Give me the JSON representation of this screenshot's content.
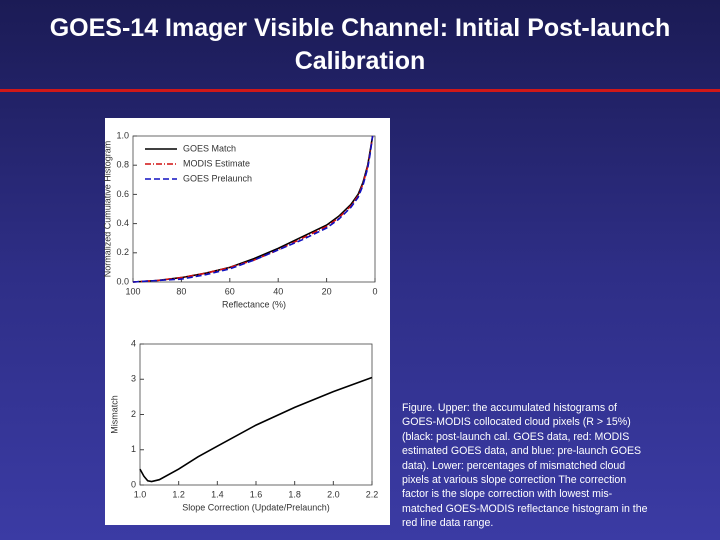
{
  "title": "GOES-14 Imager Visible Channel: Initial Post-launch Calibration",
  "caption": [
    "Figure.  Upper: the accumulated histograms of",
    "GOES-MODIS  collocated cloud pixels (R > 15%)",
    "(black:  post-launch cal. GOES data, red: MODIS",
    "estimated  GOES data, and blue: pre-launch GOES",
    "data).  Lower: percentages of mismatched  cloud",
    "pixels at various slope correction   The  correction",
    "factor is the slope correction  with lowest mis-",
    "matched GOES-MODIS reflectance histogram in the",
    "red line data range."
  ],
  "chart_data": [
    {
      "type": "line",
      "x_label": "Reflectance (%)",
      "y_label": "Normalized Cumulative Histogram",
      "x": [
        100,
        90,
        80,
        70,
        60,
        50,
        40,
        30,
        20,
        15,
        10,
        7,
        5,
        3,
        2,
        1
      ],
      "series": [
        {
          "name": "GOES Match",
          "color": "#000000",
          "dash": "solid",
          "values": [
            0,
            0.01,
            0.03,
            0.06,
            0.1,
            0.16,
            0.23,
            0.31,
            0.39,
            0.45,
            0.53,
            0.6,
            0.68,
            0.8,
            0.9,
            1.0
          ]
        },
        {
          "name": "MODIS Estimate",
          "color": "#d01010",
          "dash": "dashdot",
          "values": [
            0,
            0.01,
            0.03,
            0.06,
            0.1,
            0.15,
            0.22,
            0.3,
            0.38,
            0.44,
            0.52,
            0.59,
            0.67,
            0.79,
            0.89,
            1.0
          ]
        },
        {
          "name": "GOES Prelaunch",
          "color": "#1010c0",
          "dash": "dashed",
          "values": [
            0,
            0.01,
            0.02,
            0.05,
            0.09,
            0.15,
            0.22,
            0.29,
            0.37,
            0.43,
            0.51,
            0.58,
            0.66,
            0.78,
            0.88,
            1.0
          ]
        }
      ],
      "xlim": [
        100,
        0
      ],
      "xticks": [
        100,
        80,
        60,
        40,
        20,
        0
      ],
      "ylim": [
        0,
        1.0
      ],
      "yticks": [
        {
          "value": 0,
          "label": "0.0"
        },
        {
          "value": 0.2,
          "label": "0.2"
        },
        {
          "value": 0.4,
          "label": "0.4"
        },
        {
          "value": 0.6,
          "label": "0.6"
        },
        {
          "value": 0.8,
          "label": "0.8"
        },
        {
          "value": 1.0,
          "label": "1.0"
        }
      ],
      "legend": "top-left"
    },
    {
      "type": "line",
      "x_label": "Slope Correction (Update/Prelaunch)",
      "y_label": "Mismatch",
      "x": [
        1.0,
        1.02,
        1.04,
        1.06,
        1.1,
        1.2,
        1.3,
        1.4,
        1.6,
        1.8,
        2.0,
        2.2
      ],
      "series": [
        {
          "color": "#000000",
          "dash": "solid",
          "values": [
            0.45,
            0.25,
            0.12,
            0.1,
            0.15,
            0.45,
            0.8,
            1.1,
            1.7,
            2.2,
            2.65,
            3.05
          ]
        }
      ],
      "xlim": [
        1.0,
        2.2
      ],
      "xticks": [
        {
          "value": 1.0,
          "label": "1.0"
        },
        {
          "value": 1.2,
          "label": "1.2"
        },
        1.4,
        1.6,
        1.8,
        {
          "value": 2.0,
          "label": "2.0"
        },
        2.2
      ],
      "ylim": [
        0,
        4
      ],
      "yticks": [
        0,
        1,
        2,
        3,
        4
      ]
    }
  ]
}
